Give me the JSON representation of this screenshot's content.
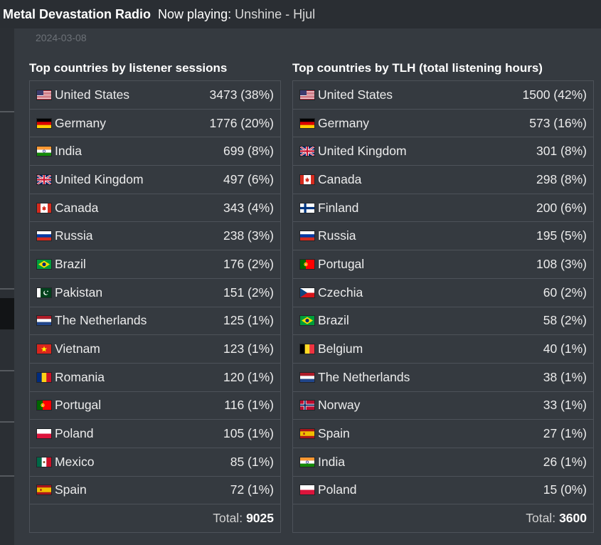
{
  "header": {
    "station": "Metal Devastation Radio",
    "now_playing_label": "Now playing:",
    "now_playing_track": "Unshine - Hjul"
  },
  "date": "2024-03-08",
  "sessions": {
    "title": "Top countries by listener sessions",
    "rows": [
      {
        "country": "United States",
        "value": "3473 (38%)",
        "flag": "us-flag"
      },
      {
        "country": "Germany",
        "value": "1776 (20%)",
        "flag": "de-flag"
      },
      {
        "country": "India",
        "value": "699 (8%)",
        "flag": "in-flag"
      },
      {
        "country": "United Kingdom",
        "value": "497 (6%)",
        "flag": "gb-flag"
      },
      {
        "country": "Canada",
        "value": "343 (4%)",
        "flag": "ca-flag"
      },
      {
        "country": "Russia",
        "value": "238 (3%)",
        "flag": "ru-flag"
      },
      {
        "country": "Brazil",
        "value": "176 (2%)",
        "flag": "br-flag"
      },
      {
        "country": "Pakistan",
        "value": "151 (2%)",
        "flag": "pk-flag"
      },
      {
        "country": "The Netherlands",
        "value": "125 (1%)",
        "flag": "nl-flag"
      },
      {
        "country": "Vietnam",
        "value": "123 (1%)",
        "flag": "vn-flag"
      },
      {
        "country": "Romania",
        "value": "120 (1%)",
        "flag": "ro-flag"
      },
      {
        "country": "Portugal",
        "value": "116 (1%)",
        "flag": "pt-flag"
      },
      {
        "country": "Poland",
        "value": "105 (1%)",
        "flag": "pl-flag"
      },
      {
        "country": "Mexico",
        "value": "85 (1%)",
        "flag": "mx-flag"
      },
      {
        "country": "Spain",
        "value": "72 (1%)",
        "flag": "es-flag"
      }
    ],
    "total_label": "Total:",
    "total_value": "9025"
  },
  "tlh": {
    "title": "Top countries by TLH (total listening hours)",
    "rows": [
      {
        "country": "United States",
        "value": "1500 (42%)",
        "flag": "us-flag"
      },
      {
        "country": "Germany",
        "value": "573 (16%)",
        "flag": "de-flag"
      },
      {
        "country": "United Kingdom",
        "value": "301 (8%)",
        "flag": "gb-flag"
      },
      {
        "country": "Canada",
        "value": "298 (8%)",
        "flag": "ca-flag"
      },
      {
        "country": "Finland",
        "value": "200 (6%)",
        "flag": "fi-flag"
      },
      {
        "country": "Russia",
        "value": "195 (5%)",
        "flag": "ru-flag"
      },
      {
        "country": "Portugal",
        "value": "108 (3%)",
        "flag": "pt-flag"
      },
      {
        "country": "Czechia",
        "value": "60 (2%)",
        "flag": "cz-flag"
      },
      {
        "country": "Brazil",
        "value": "58 (2%)",
        "flag": "br-flag"
      },
      {
        "country": "Belgium",
        "value": "40 (1%)",
        "flag": "be-flag"
      },
      {
        "country": "The Netherlands",
        "value": "38 (1%)",
        "flag": "nl-flag"
      },
      {
        "country": "Norway",
        "value": "33 (1%)",
        "flag": "no-flag"
      },
      {
        "country": "Spain",
        "value": "27 (1%)",
        "flag": "es-flag"
      },
      {
        "country": "India",
        "value": "26 (1%)",
        "flag": "in-flag"
      },
      {
        "country": "Poland",
        "value": "15 (0%)",
        "flag": "pl-flag"
      }
    ],
    "total_label": "Total:",
    "total_value": "3600"
  }
}
